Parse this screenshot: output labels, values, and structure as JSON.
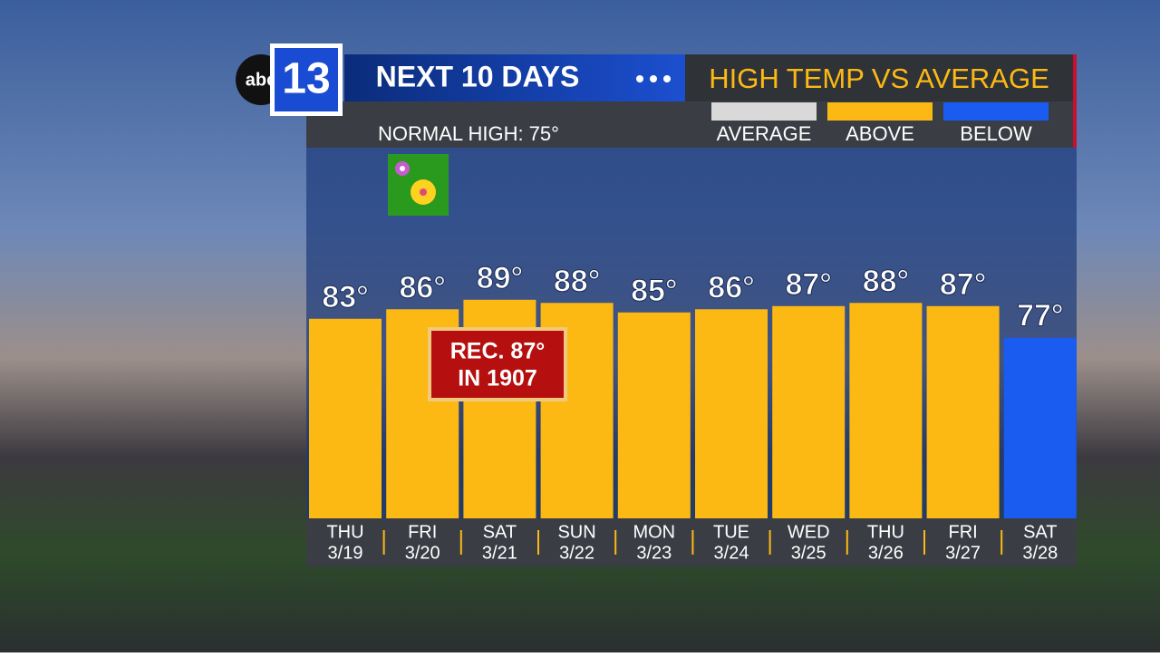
{
  "logo": {
    "network": "abc",
    "channel": "13"
  },
  "chart_data": {
    "type": "bar",
    "title": "NEXT 10 DAYS",
    "subtitle": "HIGH TEMP VS AVERAGE",
    "note": "NORMAL HIGH: 75°",
    "legend": [
      {
        "name": "AVERAGE",
        "color": "#d9d9d9"
      },
      {
        "name": "ABOVE",
        "color": "#fdb913"
      },
      {
        "name": "BELOW",
        "color": "#1a5cf0"
      }
    ],
    "categories": [
      "THU",
      "FRI",
      "SAT",
      "SUN",
      "MON",
      "TUE",
      "WED",
      "THU",
      "FRI",
      "SAT"
    ],
    "dates": [
      "3/19",
      "3/20",
      "3/21",
      "3/22",
      "3/23",
      "3/24",
      "3/25",
      "3/26",
      "3/27",
      "3/28"
    ],
    "values": [
      83,
      86,
      89,
      88,
      85,
      86,
      87,
      88,
      87,
      77
    ],
    "value_labels": [
      "83°",
      "86°",
      "89°",
      "88°",
      "85°",
      "86°",
      "87°",
      "88°",
      "87°",
      "77°"
    ],
    "colors": [
      "#fdb913",
      "#fdb913",
      "#fdb913",
      "#fdb913",
      "#fdb913",
      "#fdb913",
      "#fdb913",
      "#fdb913",
      "#fdb913",
      "#1a5cf0"
    ],
    "ylim": [
      20,
      137
    ],
    "annotation": {
      "lines": [
        "REC. 87°",
        "IN 1907"
      ]
    }
  }
}
